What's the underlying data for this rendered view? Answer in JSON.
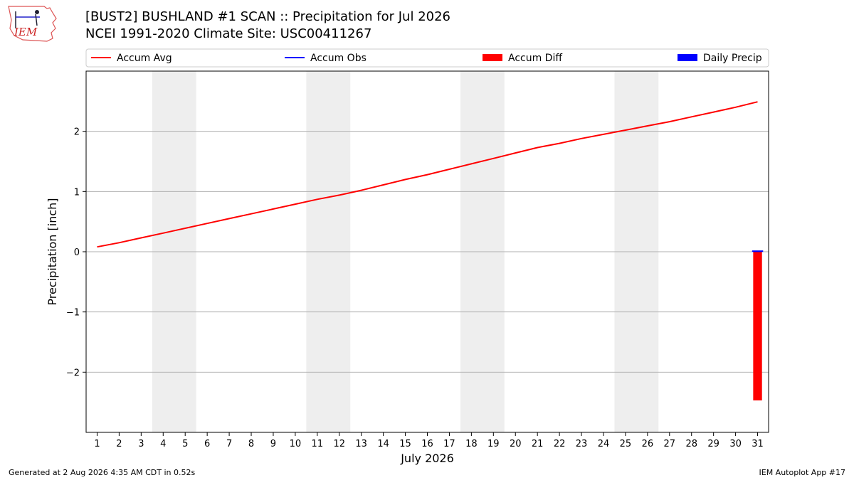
{
  "header": {
    "title_line1": "[BUST2] BUSHLAND #1 SCAN :: Precipitation for Jul 2026",
    "title_line2": "NCEI 1991-2020 Climate Site: USC00411267",
    "logo_text": "IEM"
  },
  "footer": {
    "generated": "Generated at 2 Aug 2026 4:35 AM CDT in 0.52s",
    "app": "IEM Autoplot App #17"
  },
  "chart_data": {
    "type": "line",
    "xlabel": "July 2026",
    "ylabel": "Precipitation [inch]",
    "x": [
      1,
      2,
      3,
      4,
      5,
      6,
      7,
      8,
      9,
      10,
      11,
      12,
      13,
      14,
      15,
      16,
      17,
      18,
      19,
      20,
      21,
      22,
      23,
      24,
      25,
      26,
      27,
      28,
      29,
      30,
      31
    ],
    "xlim": [
      0.5,
      31.5
    ],
    "ylim": [
      -3.0,
      3.0
    ],
    "y_ticks": [
      -2,
      -1,
      0,
      1,
      2
    ],
    "grid": "horizontal",
    "legend_position": "top",
    "weekend_shading": [
      [
        3.5,
        5.5
      ],
      [
        10.5,
        12.5
      ],
      [
        17.5,
        19.5
      ],
      [
        24.5,
        26.5
      ]
    ],
    "series": [
      {
        "name": "Accum Avg",
        "kind": "line",
        "color": "#ff0000",
        "values": [
          0.08,
          0.15,
          0.23,
          0.31,
          0.39,
          0.47,
          0.55,
          0.63,
          0.71,
          0.79,
          0.87,
          0.94,
          1.02,
          1.11,
          1.2,
          1.28,
          1.37,
          1.46,
          1.55,
          1.64,
          1.73,
          1.8,
          1.88,
          1.95,
          2.02,
          2.09,
          2.16,
          2.24,
          2.32,
          2.4,
          2.49
        ]
      },
      {
        "name": "Accum Obs",
        "kind": "line",
        "color": "#0000ff",
        "points": [
          [
            30.75,
            0.01
          ],
          [
            31.25,
            0.01
          ]
        ]
      },
      {
        "name": "Accum Diff",
        "kind": "bar",
        "color": "#ff0000",
        "points": [
          [
            31,
            -2.47
          ]
        ]
      },
      {
        "name": "Daily Precip",
        "kind": "bar",
        "color": "#0000ff",
        "points": [
          [
            31,
            0.01
          ]
        ]
      }
    ]
  }
}
